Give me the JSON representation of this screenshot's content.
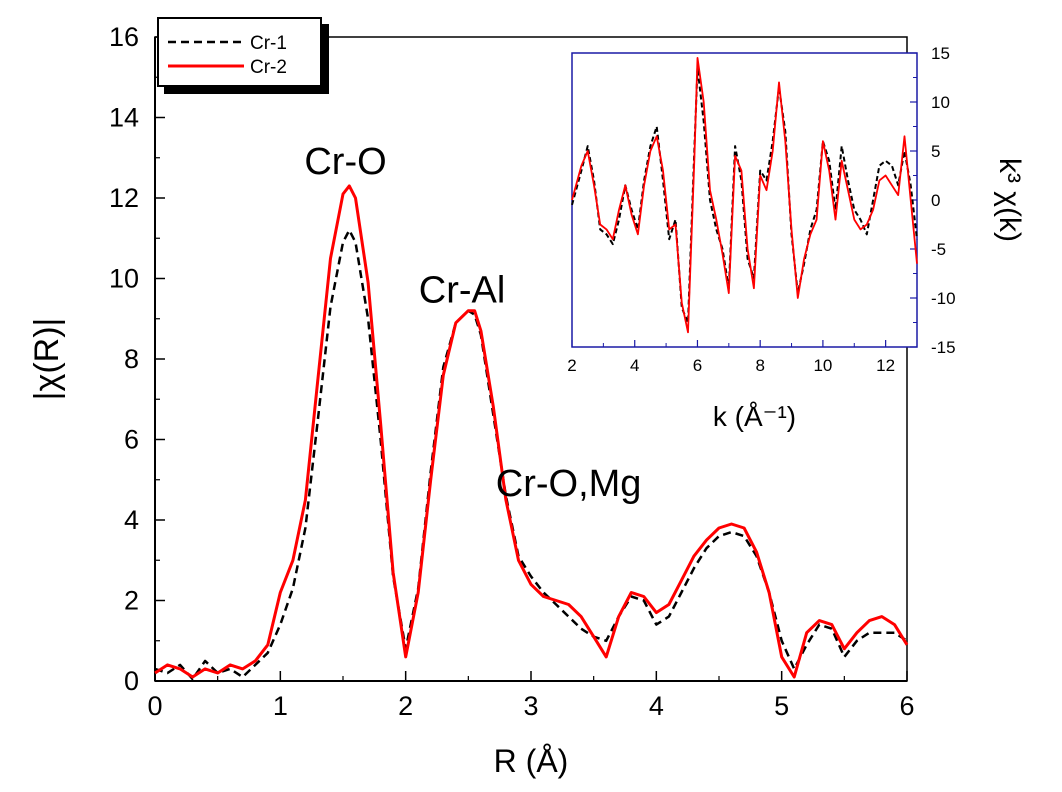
{
  "chart_data": [
    {
      "type": "line",
      "xlabel": "R (Å)",
      "ylabel": "|χ(R)|",
      "xlim": [
        0,
        6
      ],
      "ylim": [
        0,
        16
      ],
      "xticks": [
        0,
        1,
        2,
        3,
        4,
        5,
        6
      ],
      "yticks": [
        0,
        2,
        4,
        6,
        8,
        10,
        12,
        14,
        16
      ],
      "legend": {
        "placement": "top-left",
        "entries": [
          "Cr-1",
          "Cr-2"
        ]
      },
      "annotations": [
        {
          "text": "Cr-O",
          "x": 1.52,
          "y": 12.6
        },
        {
          "text": "Cr-Al",
          "x": 2.45,
          "y": 9.4
        },
        {
          "text": "Cr-O,Mg",
          "x": 3.3,
          "y": 4.6
        }
      ],
      "series": [
        {
          "name": "Cr-1",
          "color": "#000000",
          "dash": true,
          "x": [
            0,
            0.1,
            0.2,
            0.3,
            0.4,
            0.5,
            0.6,
            0.7,
            0.8,
            0.9,
            1.0,
            1.1,
            1.2,
            1.3,
            1.4,
            1.5,
            1.55,
            1.6,
            1.7,
            1.8,
            1.9,
            2.0,
            2.1,
            2.2,
            2.3,
            2.4,
            2.5,
            2.55,
            2.6,
            2.7,
            2.8,
            2.9,
            3.0,
            3.1,
            3.2,
            3.3,
            3.4,
            3.5,
            3.6,
            3.7,
            3.8,
            3.9,
            4.0,
            4.1,
            4.2,
            4.3,
            4.4,
            4.5,
            4.6,
            4.7,
            4.8,
            4.9,
            5.0,
            5.1,
            5.2,
            5.3,
            5.4,
            5.5,
            5.6,
            5.7,
            5.8,
            5.9,
            6.0
          ],
          "y": [
            0.3,
            0.2,
            0.4,
            0.05,
            0.5,
            0.2,
            0.3,
            0.1,
            0.4,
            0.7,
            1.4,
            2.3,
            3.8,
            6.5,
            9.3,
            10.9,
            11.2,
            10.9,
            9.0,
            6.0,
            2.6,
            0.8,
            2.3,
            5.2,
            7.8,
            8.9,
            9.2,
            9.1,
            8.6,
            6.6,
            4.6,
            3.1,
            2.6,
            2.2,
            1.9,
            1.6,
            1.3,
            1.1,
            1.0,
            1.6,
            2.1,
            2.0,
            1.4,
            1.6,
            2.2,
            2.8,
            3.3,
            3.6,
            3.7,
            3.6,
            3.1,
            2.2,
            1.0,
            0.3,
            0.9,
            1.4,
            1.3,
            0.6,
            1.0,
            1.2,
            1.2,
            1.2,
            1.0
          ]
        },
        {
          "name": "Cr-2",
          "color": "#ff0000",
          "dash": false,
          "x": [
            0,
            0.1,
            0.2,
            0.3,
            0.4,
            0.5,
            0.6,
            0.7,
            0.8,
            0.9,
            1.0,
            1.1,
            1.2,
            1.3,
            1.4,
            1.5,
            1.55,
            1.6,
            1.7,
            1.8,
            1.9,
            2.0,
            2.1,
            2.2,
            2.3,
            2.4,
            2.5,
            2.55,
            2.6,
            2.7,
            2.8,
            2.9,
            3.0,
            3.1,
            3.2,
            3.3,
            3.4,
            3.5,
            3.6,
            3.7,
            3.8,
            3.9,
            4.0,
            4.1,
            4.2,
            4.3,
            4.4,
            4.5,
            4.6,
            4.7,
            4.8,
            4.9,
            5.0,
            5.1,
            5.2,
            5.3,
            5.4,
            5.5,
            5.6,
            5.7,
            5.8,
            5.9,
            6.0
          ],
          "y": [
            0.2,
            0.4,
            0.3,
            0.1,
            0.3,
            0.2,
            0.4,
            0.3,
            0.5,
            0.9,
            2.2,
            3.0,
            4.5,
            7.5,
            10.5,
            12.1,
            12.3,
            12.0,
            9.9,
            6.4,
            2.7,
            0.6,
            2.2,
            5.0,
            7.6,
            8.9,
            9.2,
            9.2,
            8.7,
            6.8,
            4.5,
            3.0,
            2.4,
            2.1,
            2.0,
            1.9,
            1.6,
            1.1,
            0.6,
            1.6,
            2.2,
            2.1,
            1.7,
            1.9,
            2.5,
            3.1,
            3.5,
            3.8,
            3.9,
            3.8,
            3.2,
            2.2,
            0.6,
            0.1,
            1.2,
            1.5,
            1.4,
            0.8,
            1.2,
            1.5,
            1.6,
            1.4,
            0.9
          ]
        }
      ]
    },
    {
      "type": "line",
      "xlabel": "k (Å⁻¹)",
      "ylabel": "k³ χ(k)",
      "xlim": [
        2,
        13
      ],
      "ylim": [
        -15,
        15
      ],
      "xticks": [
        2,
        4,
        6,
        8,
        10,
        12
      ],
      "yticks": [
        -15,
        -10,
        -5,
        0,
        5,
        10,
        15
      ],
      "series": [
        {
          "name": "Cr-1",
          "color": "#000000",
          "dash": true,
          "x": [
            2.0,
            2.3,
            2.5,
            2.7,
            2.9,
            3.1,
            3.3,
            3.5,
            3.7,
            3.9,
            4.1,
            4.3,
            4.5,
            4.7,
            4.9,
            5.1,
            5.3,
            5.5,
            5.7,
            5.9,
            6.0,
            6.2,
            6.4,
            6.6,
            6.8,
            7.0,
            7.2,
            7.4,
            7.6,
            7.8,
            8.0,
            8.2,
            8.4,
            8.6,
            8.8,
            9.0,
            9.2,
            9.4,
            9.6,
            9.8,
            10.0,
            10.2,
            10.4,
            10.6,
            10.8,
            11.0,
            11.2,
            11.4,
            11.6,
            11.8,
            12.0,
            12.2,
            12.4,
            12.6,
            12.8,
            13.0
          ],
          "y": [
            -0.5,
            3.0,
            5.5,
            2.0,
            -3.0,
            -3.5,
            -4.5,
            -2.0,
            1.5,
            -1.0,
            -3.0,
            2.0,
            5.5,
            7.5,
            2.0,
            -4.0,
            -2.0,
            -11.0,
            -12.5,
            5.0,
            13.5,
            8.0,
            0.0,
            -3.0,
            -5.0,
            -9.0,
            5.5,
            2.0,
            -6.0,
            -8.0,
            3.0,
            2.0,
            6.0,
            11.5,
            7.0,
            -3.5,
            -9.5,
            -6.5,
            -3.0,
            -1.0,
            6.0,
            4.0,
            -1.0,
            5.5,
            2.0,
            -1.0,
            -2.0,
            -3.5,
            0.0,
            3.5,
            4.0,
            3.5,
            1.5,
            5.0,
            1.5,
            -4.0
          ]
        },
        {
          "name": "Cr-2",
          "color": "#ff0000",
          "dash": false,
          "x": [
            2.0,
            2.3,
            2.5,
            2.7,
            2.9,
            3.1,
            3.3,
            3.5,
            3.7,
            3.9,
            4.1,
            4.3,
            4.5,
            4.7,
            4.9,
            5.1,
            5.3,
            5.5,
            5.7,
            5.9,
            6.0,
            6.2,
            6.4,
            6.6,
            6.8,
            7.0,
            7.2,
            7.4,
            7.6,
            7.8,
            8.0,
            8.2,
            8.4,
            8.6,
            8.8,
            9.0,
            9.2,
            9.4,
            9.6,
            9.8,
            10.0,
            10.2,
            10.4,
            10.6,
            10.8,
            11.0,
            11.2,
            11.4,
            11.6,
            11.8,
            12.0,
            12.2,
            12.4,
            12.6,
            12.8,
            13.0
          ],
          "y": [
            0.0,
            3.5,
            5.0,
            1.5,
            -2.5,
            -3.0,
            -4.0,
            -1.0,
            1.5,
            -1.5,
            -3.5,
            1.5,
            5.0,
            6.5,
            3.0,
            -3.0,
            -2.5,
            -10.5,
            -13.5,
            4.0,
            14.5,
            10.0,
            1.0,
            -2.0,
            -5.5,
            -9.5,
            4.5,
            3.0,
            -5.0,
            -9.0,
            2.5,
            1.0,
            5.0,
            12.0,
            6.0,
            -3.0,
            -10.0,
            -6.0,
            -3.5,
            -2.0,
            6.0,
            3.0,
            -2.0,
            4.0,
            1.0,
            -2.0,
            -3.0,
            -2.5,
            -1.0,
            2.0,
            2.5,
            1.5,
            0.5,
            6.5,
            0.0,
            -6.5
          ]
        }
      ]
    }
  ]
}
